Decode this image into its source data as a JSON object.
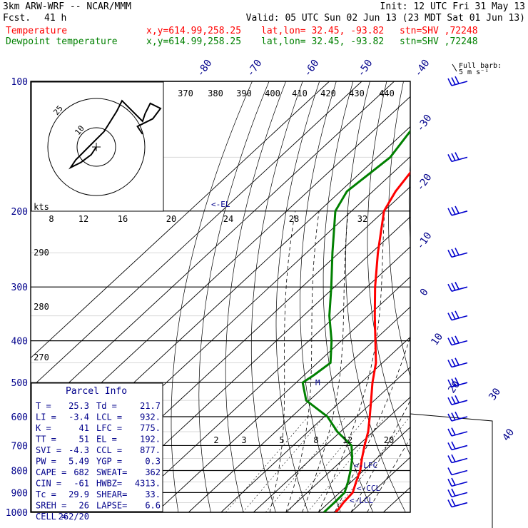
{
  "header": {
    "model": "3km ARW-WRF -- NCAR/MMM",
    "init": "Init: 12 UTC Fri 31 May 13",
    "fcst_label": "Fcst.",
    "fcst_value": "41 h",
    "valid": "Valid: 05 UTC Sun 02 Jun 13 (23 MDT Sat 01 Jun 13)",
    "temp_label": "Temperature",
    "dew_label": "Dewpoint temperature",
    "xy": "x,y=614.99,258.25",
    "latlon": "lat,lon= 32.45, -93.82",
    "stn": "stn=SHV ,72248",
    "temp_color": "#ff0000",
    "dew_color": "#008000",
    "text_color": "#00008b"
  },
  "chart_data": {
    "type": "line",
    "title": "Skew-T log-P sounding",
    "pressure_levels": [
      100,
      200,
      300,
      400,
      500,
      600,
      700,
      800,
      900,
      1000
    ],
    "isotherm_labels": [
      "-80",
      "-70",
      "-60",
      "-50",
      "-40",
      "-30",
      "-20",
      "-10",
      "0",
      "10",
      "20",
      "30",
      "40"
    ],
    "theta_labels": [
      "370",
      "380",
      "390",
      "400",
      "410",
      "420",
      "430",
      "440"
    ],
    "theta_left_labels": [
      "290",
      "280",
      "270"
    ],
    "mixing_ratio_labels": [
      "2",
      "3",
      "5",
      "8",
      "12",
      "20"
    ],
    "wind_axis_labels": [
      "kts",
      "8",
      "12",
      "16",
      "20",
      "24",
      "28",
      "32"
    ],
    "hodograph_rings": [
      "10",
      "25"
    ],
    "level_marks": [
      "<-EL",
      "<-LFC",
      "<-CCL",
      "<-LCL",
      "M"
    ],
    "barb_scale": {
      "title": "Full barb:",
      "value": "5 m s⁻¹"
    },
    "series": [
      {
        "name": "Temperature",
        "color": "#ff0000",
        "points": [
          [
            100,
            -70
          ],
          [
            110,
            -69
          ],
          [
            125,
            -67
          ],
          [
            140,
            -65
          ],
          [
            160,
            -65
          ],
          [
            180,
            -63
          ],
          [
            200,
            -60
          ],
          [
            250,
            -48
          ],
          [
            300,
            -37.5
          ],
          [
            350,
            -28
          ],
          [
            400,
            -19.5
          ],
          [
            450,
            -12
          ],
          [
            500,
            -6.5
          ],
          [
            550,
            -1
          ],
          [
            600,
            4
          ],
          [
            650,
            8.5
          ],
          [
            700,
            12
          ],
          [
            750,
            15.5
          ],
          [
            800,
            19
          ],
          [
            850,
            21.5
          ],
          [
            900,
            24
          ],
          [
            950,
            24.5
          ],
          [
            975,
            25
          ],
          [
            1000,
            25.3
          ]
        ]
      },
      {
        "name": "Dewpoint temperature",
        "color": "#008000",
        "points": [
          [
            100,
            -80
          ],
          [
            120,
            -80
          ],
          [
            150,
            -76
          ],
          [
            180,
            -78
          ],
          [
            200,
            -75
          ],
          [
            250,
            -62
          ],
          [
            300,
            -51
          ],
          [
            350,
            -42
          ],
          [
            400,
            -33
          ],
          [
            450,
            -26
          ],
          [
            480,
            -27
          ],
          [
            500,
            -28
          ],
          [
            550,
            -21
          ],
          [
            600,
            -9
          ],
          [
            650,
            -1
          ],
          [
            700,
            8
          ],
          [
            750,
            12.5
          ],
          [
            800,
            16
          ],
          [
            850,
            19
          ],
          [
            900,
            21.5
          ],
          [
            950,
            21.7
          ],
          [
            1000,
            21.7
          ]
        ]
      }
    ],
    "hodograph_points": [
      [
        0,
        0
      ],
      [
        -2,
        -3
      ],
      [
        -6,
        -6
      ],
      [
        -10,
        -8
      ],
      [
        -8,
        -5
      ],
      [
        -3,
        0
      ],
      [
        3,
        6
      ],
      [
        8,
        14
      ],
      [
        10,
        18
      ],
      [
        14,
        14
      ],
      [
        18,
        10
      ],
      [
        19,
        13
      ],
      [
        21,
        17
      ],
      [
        25,
        15
      ],
      [
        22,
        11
      ],
      [
        16,
        8
      ],
      [
        18,
        5
      ]
    ],
    "wind_barbs": [
      {
        "p": 100,
        "speed": 15,
        "dir": 255
      },
      {
        "p": 150,
        "speed": 15,
        "dir": 255
      },
      {
        "p": 200,
        "speed": 15,
        "dir": 255
      },
      {
        "p": 250,
        "speed": 15,
        "dir": 255
      },
      {
        "p": 300,
        "speed": 15,
        "dir": 255
      },
      {
        "p": 350,
        "speed": 15,
        "dir": 255
      },
      {
        "p": 400,
        "speed": 15,
        "dir": 255
      },
      {
        "p": 450,
        "speed": 15,
        "dir": 255
      },
      {
        "p": 500,
        "speed": 15,
        "dir": 255
      },
      {
        "p": 550,
        "speed": 15,
        "dir": 255
      },
      {
        "p": 600,
        "speed": 15,
        "dir": 255
      },
      {
        "p": 650,
        "speed": 10,
        "dir": 255
      },
      {
        "p": 700,
        "speed": 10,
        "dir": 255
      },
      {
        "p": 750,
        "speed": 10,
        "dir": 255
      },
      {
        "p": 800,
        "speed": 5,
        "dir": 255
      },
      {
        "p": 850,
        "speed": 10,
        "dir": 210
      },
      {
        "p": 900,
        "speed": 10,
        "dir": 200
      },
      {
        "p": 950,
        "speed": 10,
        "dir": 190
      }
    ]
  },
  "parcel_info": {
    "title": "Parcel Info",
    "rows": [
      [
        "T  =",
        "25.3",
        "Td =",
        "21.7"
      ],
      [
        "LI =",
        "-3.4",
        "LCL =",
        "932."
      ],
      [
        "K  =",
        "41",
        "LFC =",
        "775."
      ],
      [
        "TT =",
        "51",
        "EL =",
        "192."
      ],
      [
        "SVI =",
        "-4.3",
        "CCL =",
        "877."
      ],
      [
        "PW =",
        "5.49",
        "YGP =",
        "0.3"
      ],
      [
        "CAPE =",
        "682",
        "SWEAT=",
        "362"
      ],
      [
        "CIN =",
        "-61",
        "HWBZ=",
        "4313."
      ],
      [
        "Tc =",
        "29.9",
        "SHEAR=",
        "33."
      ],
      [
        "SREH =",
        "26",
        "LAPSE=",
        "6.6"
      ],
      [
        "CELL =",
        "262/20",
        "",
        ""
      ]
    ]
  }
}
